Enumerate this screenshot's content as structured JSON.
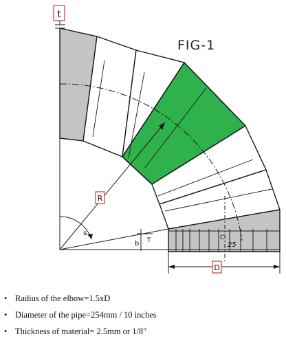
{
  "figure": {
    "title": "FIG-1",
    "labels": {
      "t": "t",
      "R": "R",
      "D": "D",
      "T": "T",
      "C": "C",
      "b": "b",
      "s": "s",
      "angle": "25"
    },
    "colors": {
      "gray_segment": "#c4c4c4",
      "green_segment": "#2fb14b",
      "label_box": "#d9342b",
      "line": "#1a1a1a"
    }
  },
  "notes": [
    "Radius of the elbow=1.5xD",
    "Diameter of the pipe=254mm / 10 inches",
    "Thickness of material= 2.5mm or 1/8\""
  ]
}
